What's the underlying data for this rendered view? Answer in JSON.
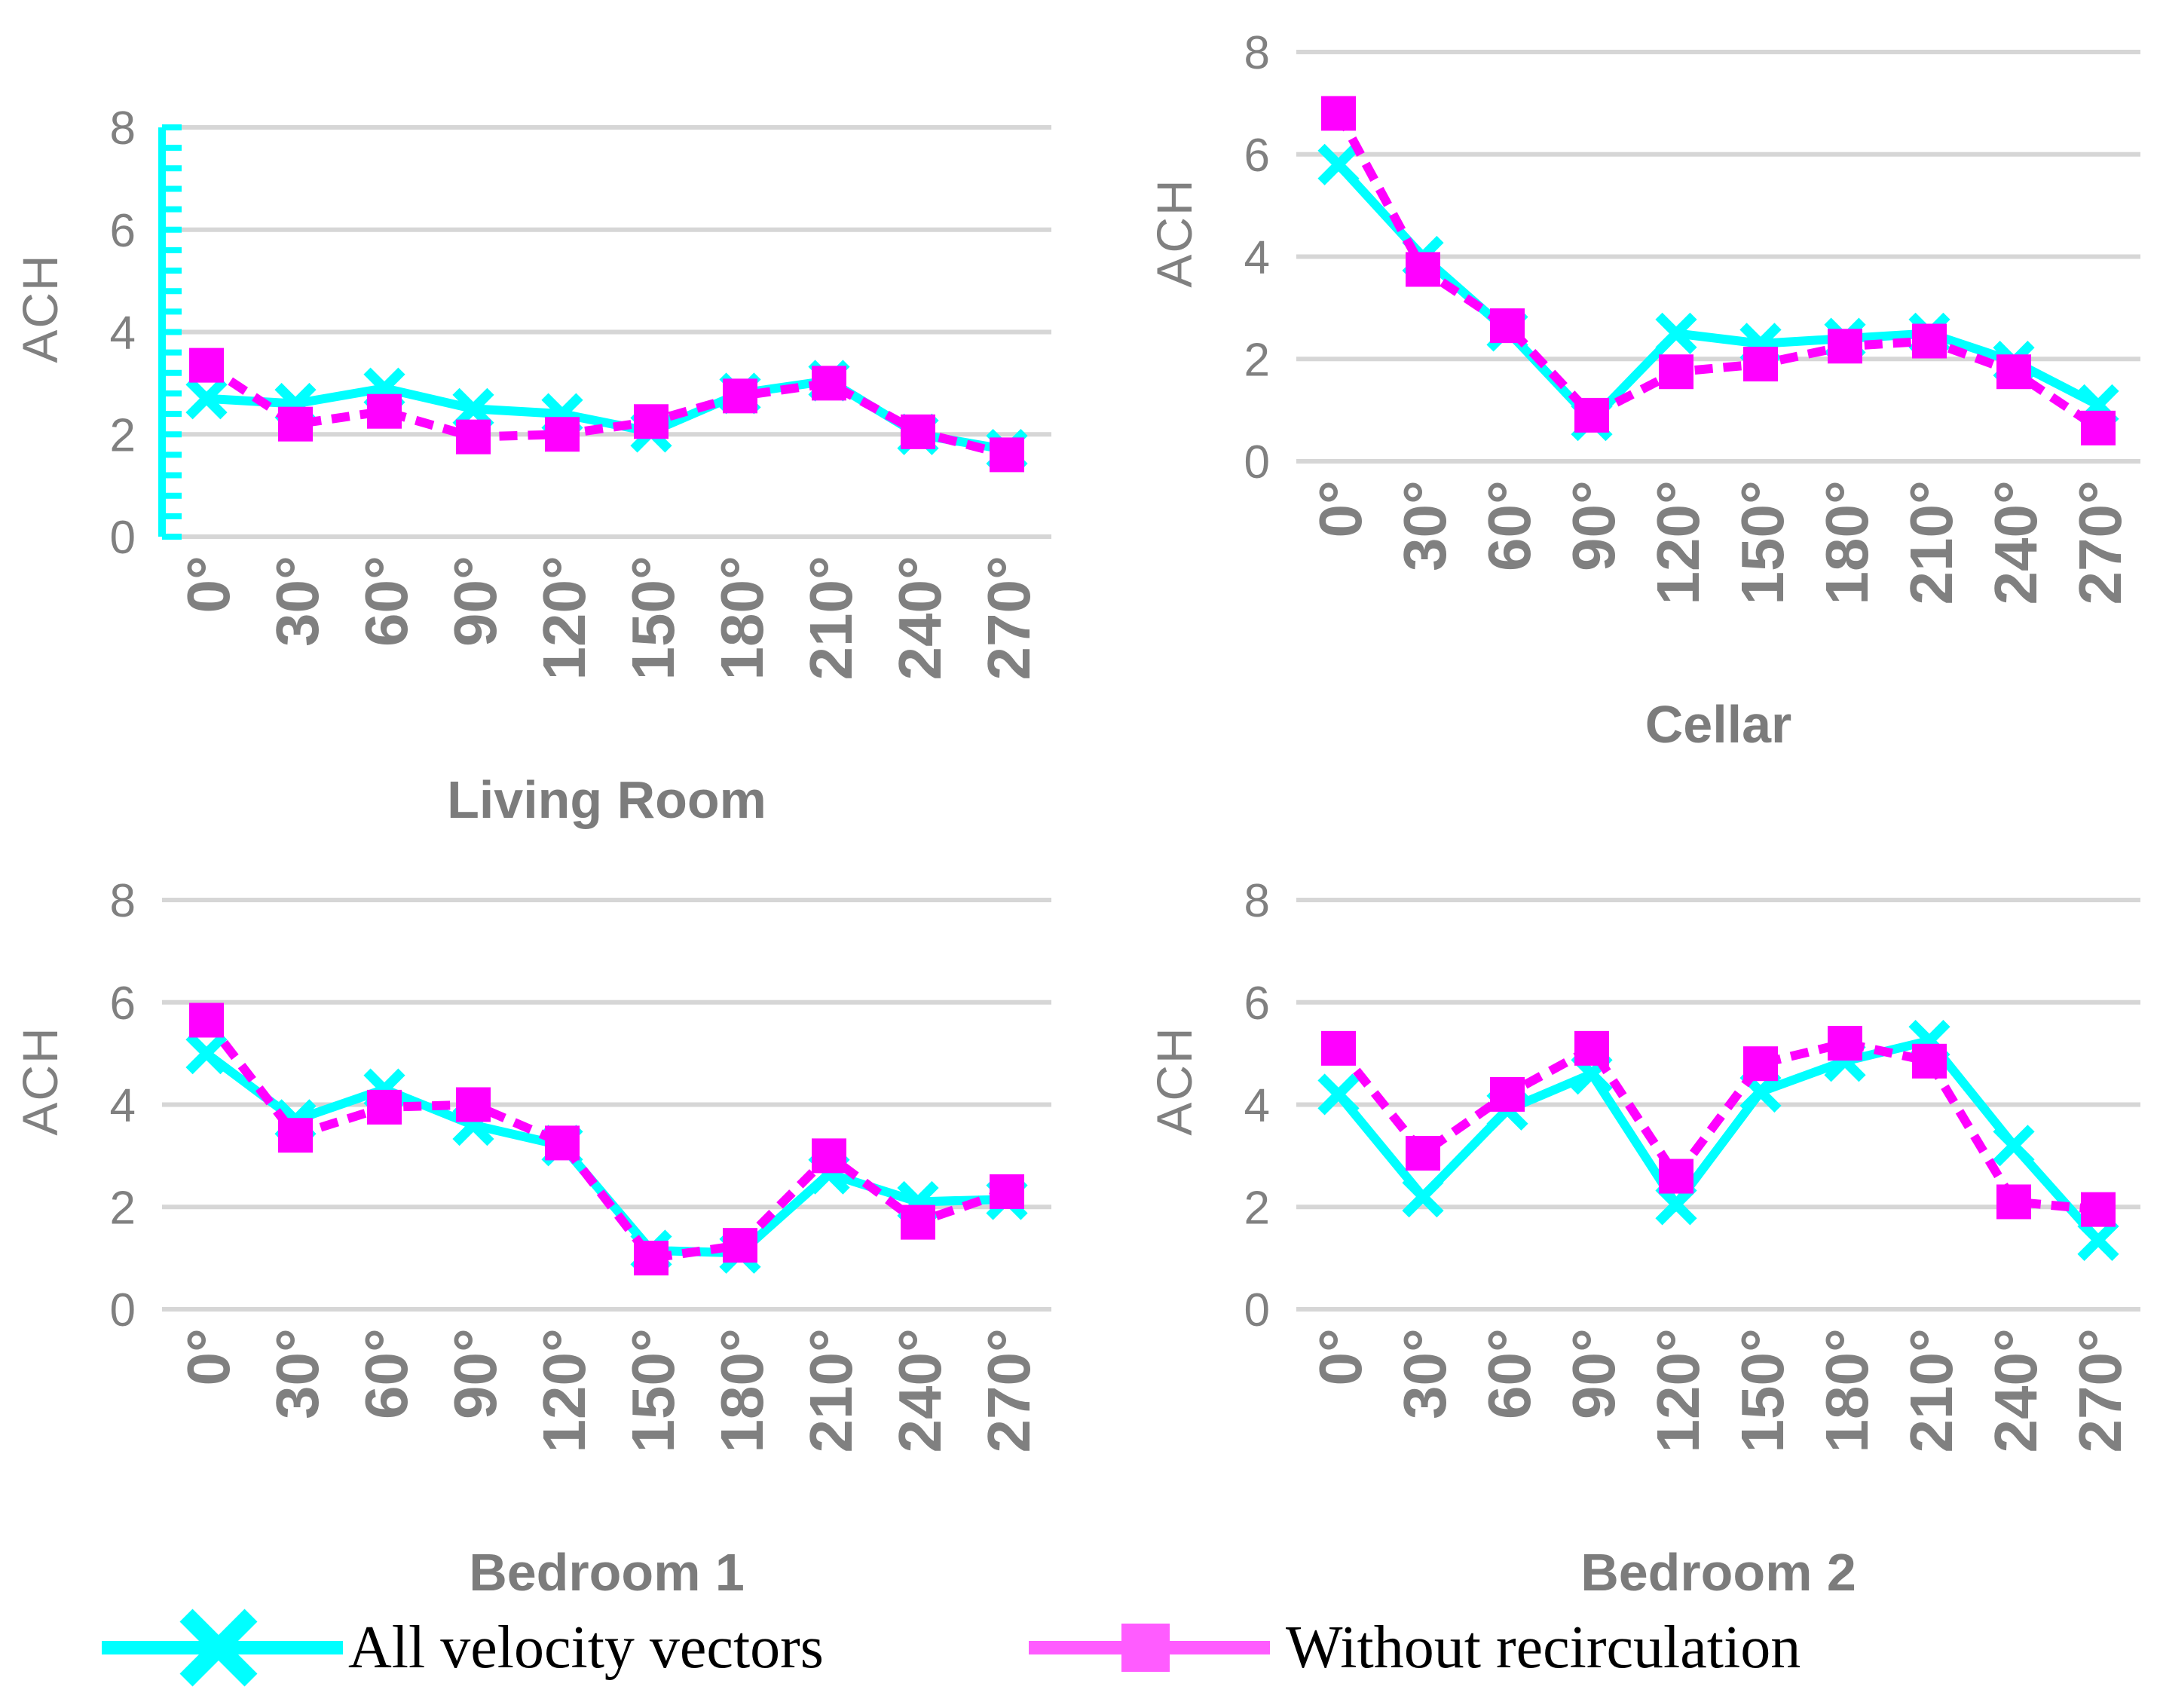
{
  "colors": {
    "series_all_velocity": "#00FFFF",
    "series_without_recirculation": "#FF00FF",
    "legend_without_recirculation": "#FF5CFF",
    "gridline": "#D6D6D6",
    "tick_label": "#808080",
    "axis_title": "#808080",
    "chart_title": "#7C7C7C",
    "legend_text": "#000000",
    "background": "#FFFFFF"
  },
  "legend": {
    "items": [
      {
        "label": "All velocity vectors",
        "marker": "x-cross",
        "color": "#00FFFF"
      },
      {
        "label": "Without recirculation",
        "marker": "square",
        "color": "#FF5CFF"
      }
    ]
  },
  "chart_data": [
    {
      "type": "line",
      "title": "Living Room",
      "xlabel": "",
      "ylabel": "ACH",
      "ylim": [
        0,
        8
      ],
      "yticks": [
        0,
        2,
        4,
        6,
        8
      ],
      "grid": true,
      "y_axis_line": true,
      "y_axis_minor_tick_step": 0.4,
      "categories": [
        "0°",
        "30°",
        "60°",
        "90°",
        "120°",
        "150°",
        "180°",
        "210°",
        "240°",
        "270°"
      ],
      "series": [
        {
          "name": "All velocity vectors",
          "line": "solid",
          "marker": "x",
          "values": [
            2.7,
            2.6,
            2.9,
            2.5,
            2.4,
            2.05,
            2.8,
            3.05,
            2.0,
            1.7
          ]
        },
        {
          "name": "Without recirculation",
          "line": "dashed",
          "marker": "square",
          "values": [
            3.35,
            2.2,
            2.45,
            1.95,
            2.0,
            2.25,
            2.75,
            3.0,
            2.05,
            1.6
          ]
        }
      ]
    },
    {
      "type": "line",
      "title": "Cellar",
      "xlabel": "",
      "ylabel": "ACH",
      "ylim": [
        0,
        8
      ],
      "yticks": [
        0,
        2,
        4,
        6,
        8
      ],
      "grid": true,
      "y_axis_line": false,
      "categories": [
        "0°",
        "30°",
        "60°",
        "90°",
        "120°",
        "150°",
        "180°",
        "210°",
        "240°",
        "270°"
      ],
      "series": [
        {
          "name": "All velocity vectors",
          "line": "solid",
          "marker": "x",
          "values": [
            5.8,
            4.0,
            2.55,
            0.8,
            2.5,
            2.3,
            2.4,
            2.5,
            1.95,
            1.1
          ]
        },
        {
          "name": "Without recirculation",
          "line": "dashed",
          "marker": "square",
          "values": [
            6.8,
            3.75,
            2.65,
            0.9,
            1.75,
            1.9,
            2.25,
            2.35,
            1.75,
            0.65
          ]
        }
      ]
    },
    {
      "type": "line",
      "title": "Bedroom 1",
      "xlabel": "",
      "ylabel": "ACH",
      "ylim": [
        0,
        8
      ],
      "yticks": [
        0,
        2,
        4,
        6,
        8
      ],
      "grid": true,
      "y_axis_line": false,
      "categories": [
        "0°",
        "30°",
        "60°",
        "90°",
        "120°",
        "150°",
        "180°",
        "210°",
        "240°",
        "270°"
      ],
      "series": [
        {
          "name": "All velocity vectors",
          "line": "solid",
          "marker": "x",
          "values": [
            5.0,
            3.7,
            4.3,
            3.6,
            3.2,
            1.15,
            1.1,
            2.65,
            2.1,
            2.15
          ]
        },
        {
          "name": "Without recirculation",
          "line": "dashed",
          "marker": "square",
          "values": [
            5.65,
            3.4,
            3.95,
            4.0,
            3.25,
            1.0,
            1.25,
            3.0,
            1.7,
            2.3
          ]
        }
      ]
    },
    {
      "type": "line",
      "title": "Bedroom 2",
      "xlabel": "",
      "ylabel": "ACH",
      "ylim": [
        0,
        8
      ],
      "yticks": [
        0,
        2,
        4,
        6,
        8
      ],
      "grid": true,
      "y_axis_line": false,
      "categories": [
        "0°",
        "30°",
        "60°",
        "90°",
        "120°",
        "150°",
        "180°",
        "210°",
        "240°",
        "270°"
      ],
      "series": [
        {
          "name": "All velocity vectors",
          "line": "solid",
          "marker": "x",
          "values": [
            4.2,
            2.2,
            3.9,
            4.6,
            2.05,
            4.25,
            4.85,
            5.25,
            3.2,
            1.35
          ]
        },
        {
          "name": "Without recirculation",
          "line": "dashed",
          "marker": "square",
          "values": [
            5.1,
            3.05,
            4.2,
            5.1,
            2.6,
            4.8,
            5.2,
            4.85,
            2.1,
            1.95
          ]
        }
      ]
    }
  ]
}
